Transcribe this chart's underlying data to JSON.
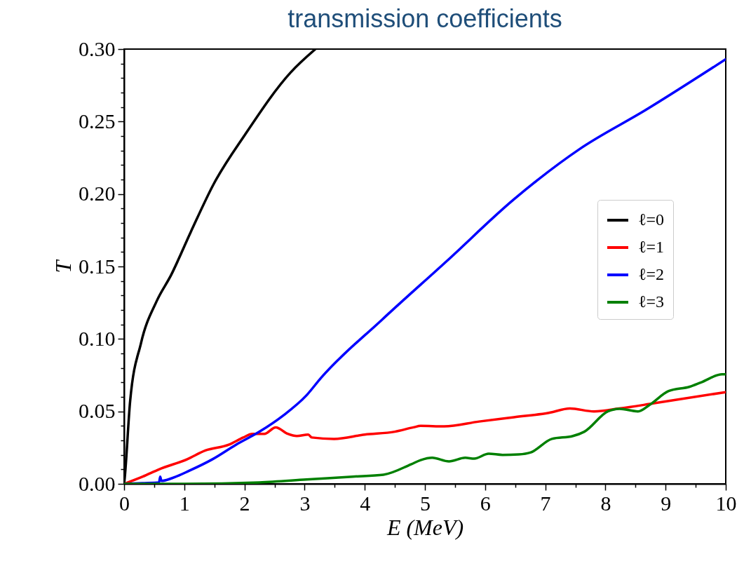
{
  "chart_data": {
    "type": "line",
    "title": "transmission coefficients",
    "xlabel": "E (MeV)",
    "ylabel": "T",
    "xlim": [
      0,
      10
    ],
    "ylim": [
      0,
      0.3
    ],
    "xticks": [
      0,
      {
        "value": 0.5,
        "label": null
      },
      1,
      {
        "value": 1.5,
        "label": null
      },
      2,
      {
        "value": 2.5,
        "label": null
      },
      3,
      {
        "value": 3.5,
        "label": null
      },
      4,
      {
        "value": 4.5,
        "label": null
      },
      5,
      {
        "value": 5.5,
        "label": null
      },
      6,
      {
        "value": 6.5,
        "label": null
      },
      7,
      {
        "value": 7.5,
        "label": null
      },
      8,
      {
        "value": 8.5,
        "label": null
      },
      9,
      {
        "value": 9.5,
        "label": null
      },
      10
    ],
    "yticks": [
      {
        "value": 0,
        "label": "0.00"
      },
      {
        "value": 0.01,
        "label": null
      },
      {
        "value": 0.02,
        "label": null
      },
      {
        "value": 0.03,
        "label": null
      },
      {
        "value": 0.04,
        "label": null
      },
      {
        "value": 0.05,
        "label": "0.05"
      },
      {
        "value": 0.06,
        "label": null
      },
      {
        "value": 0.07,
        "label": null
      },
      {
        "value": 0.08,
        "label": null
      },
      {
        "value": 0.09,
        "label": null
      },
      {
        "value": 0.1,
        "label": "0.10"
      },
      {
        "value": 0.11,
        "label": null
      },
      {
        "value": 0.12,
        "label": null
      },
      {
        "value": 0.13,
        "label": null
      },
      {
        "value": 0.14,
        "label": null
      },
      {
        "value": 0.15,
        "label": "0.15"
      },
      {
        "value": 0.16,
        "label": null
      },
      {
        "value": 0.17,
        "label": null
      },
      {
        "value": 0.18,
        "label": null
      },
      {
        "value": 0.19,
        "label": null
      },
      {
        "value": 0.2,
        "label": "0.20"
      },
      {
        "value": 0.21,
        "label": null
      },
      {
        "value": 0.22,
        "label": null
      },
      {
        "value": 0.23,
        "label": null
      },
      {
        "value": 0.24,
        "label": null
      },
      {
        "value": 0.25,
        "label": "0.25"
      },
      {
        "value": 0.26,
        "label": null
      },
      {
        "value": 0.27,
        "label": null
      },
      {
        "value": 0.28,
        "label": null
      },
      {
        "value": 0.29,
        "label": null
      },
      {
        "value": 0.3,
        "label": "0.30"
      }
    ],
    "grid": false,
    "legend": "right",
    "series": [
      {
        "name": "ℓ=0",
        "color": "#000000",
        "x": [
          0,
          0.01,
          0.1,
          0.28,
          0.54,
          0.78,
          1.11,
          1.49,
          2.01,
          2.77,
          3.18
        ],
        "values": [
          0,
          0.004,
          0.057,
          0.097,
          0.126,
          0.144,
          0.174,
          0.207,
          0.241,
          0.284,
          0.3
        ]
      },
      {
        "name": "ℓ=1",
        "color": "#ff0000",
        "x": [
          0,
          0.31,
          0.58,
          1.05,
          1.35,
          1.74,
          1.98,
          2.13,
          2.33,
          2.52,
          2.72,
          2.87,
          3.06,
          3.12,
          3.49,
          4.0,
          4.5,
          4.81,
          4.93,
          5.32,
          5.9,
          6.48,
          7.06,
          7.41,
          7.81,
          8.23,
          8.81,
          10
        ],
        "values": [
          0,
          0.005,
          0.01,
          0.017,
          0.023,
          0.027,
          0.032,
          0.0345,
          0.0345,
          0.039,
          0.0345,
          0.033,
          0.034,
          0.032,
          0.031,
          0.034,
          0.036,
          0.039,
          0.04,
          0.0397,
          0.043,
          0.046,
          0.049,
          0.052,
          0.05,
          0.052,
          0.0556,
          0.0633
        ]
      },
      {
        "name": "ℓ=2",
        "color": "#0000ff",
        "x": [
          0,
          0.3,
          0.58,
          0.6,
          0.62,
          0.8,
          1.08,
          1.47,
          1.86,
          2.25,
          2.64,
          3.03,
          3.27,
          4.28,
          5.37,
          6.47,
          7.57,
          8.67,
          10
        ],
        "values": [
          0,
          0.0005,
          0.001,
          0.005,
          0.002,
          0.004,
          0.009,
          0.017,
          0.027,
          0.036,
          0.047,
          0.061,
          0.073,
          0.113,
          0.154,
          0.196,
          0.231,
          0.258,
          0.293
        ]
      },
      {
        "name": "ℓ=3",
        "color": "#008000",
        "x": [
          0,
          1.0,
          2.25,
          3.03,
          3.8,
          4.31,
          4.77,
          4.93,
          5.12,
          5.4,
          5.67,
          5.82,
          6.06,
          6.29,
          6.56,
          6.76,
          7.11,
          7.46,
          7.65,
          8.04,
          8.23,
          8.54,
          8.74,
          9.05,
          9.4,
          9.59,
          9.94,
          10
        ],
        "values": [
          0,
          0,
          0.001,
          0.003,
          0.005,
          0.0063,
          0.0135,
          0.0164,
          0.018,
          0.0155,
          0.018,
          0.0174,
          0.0208,
          0.02,
          0.0203,
          0.0217,
          0.031,
          0.033,
          0.036,
          0.05,
          0.0518,
          0.05,
          0.0547,
          0.064,
          0.067,
          0.07,
          0.0756,
          0.0756
        ]
      }
    ]
  }
}
